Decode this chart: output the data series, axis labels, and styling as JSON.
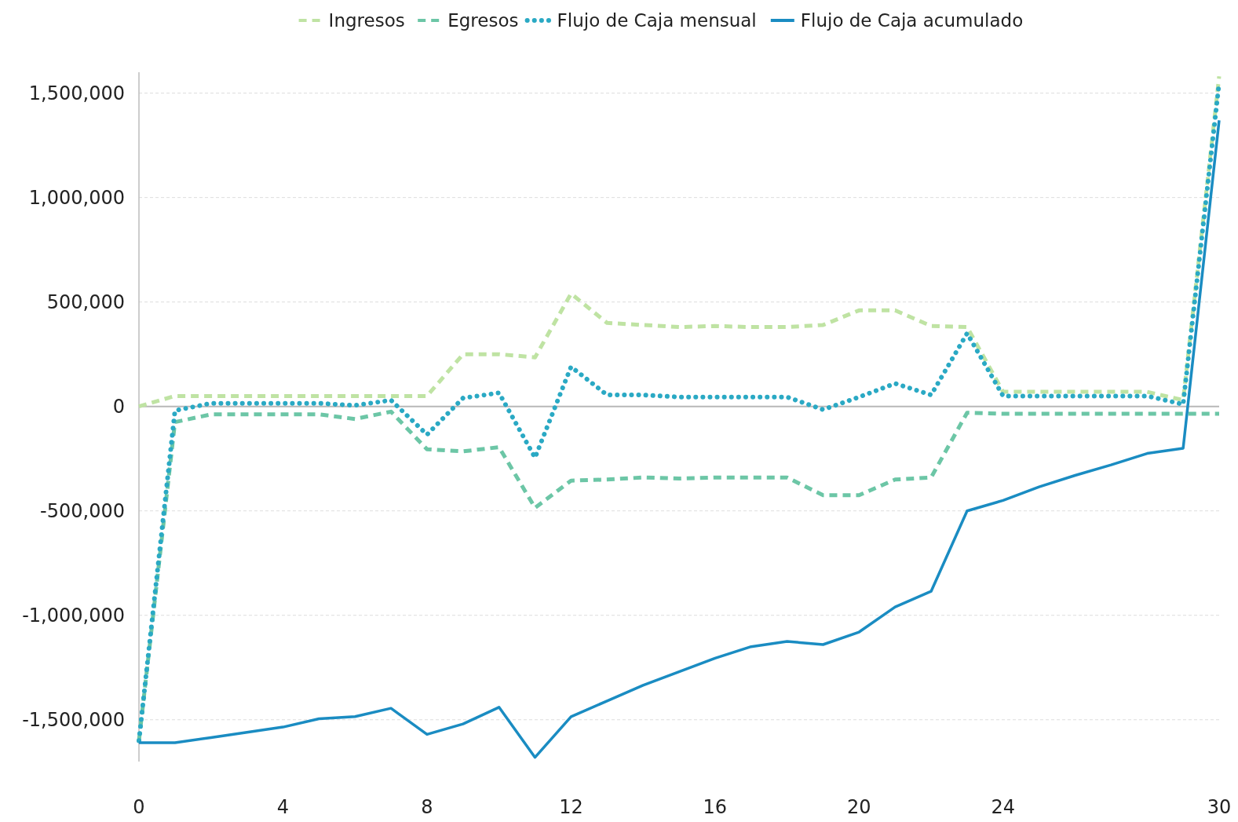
{
  "chart_data": {
    "type": "line",
    "x": [
      0,
      1,
      2,
      3,
      4,
      5,
      6,
      7,
      8,
      9,
      10,
      11,
      12,
      13,
      14,
      15,
      16,
      17,
      18,
      19,
      20,
      21,
      22,
      23,
      24,
      25,
      26,
      27,
      28,
      29,
      30
    ],
    "xlim": [
      0,
      30
    ],
    "xticks": [
      0,
      4,
      8,
      12,
      16,
      20,
      24,
      30
    ],
    "ylim": [
      -1700000,
      1600000
    ],
    "yticks": [
      {
        "value": -1500000,
        "label": "-1,500,000"
      },
      {
        "value": -1000000,
        "label": "-1,000,000"
      },
      {
        "value": -500000,
        "label": "-500,000"
      },
      0,
      {
        "value": 500000,
        "label": "500,000"
      },
      {
        "value": 1000000,
        "label": "1,000,000"
      },
      {
        "value": 1500000,
        "label": "1,500,000"
      }
    ],
    "grid": "y",
    "legend": "top",
    "marker": "none",
    "ref_lines": [
      {
        "axis": "y",
        "value": 0,
        "color": "#b8b8b8",
        "line_style": "solid"
      }
    ],
    "series": [
      {
        "name": "Ingresos",
        "color": "#bfe3a3",
        "line_style": "dashed",
        "values": [
          0,
          50000,
          50000,
          50000,
          50000,
          50000,
          50000,
          50000,
          50000,
          250000,
          250000,
          235000,
          540000,
          400000,
          390000,
          380000,
          385000,
          380000,
          380000,
          390000,
          460000,
          460000,
          385000,
          380000,
          70000,
          70000,
          70000,
          70000,
          70000,
          30000,
          1580000
        ]
      },
      {
        "name": "Egresos",
        "color": "#6cc6a6",
        "line_style": "dashed",
        "values": [
          -1600000,
          -75000,
          -38000,
          -38000,
          -38000,
          -38000,
          -60000,
          -25000,
          -205000,
          -215000,
          -195000,
          -485000,
          -355000,
          -350000,
          -340000,
          -345000,
          -340000,
          -340000,
          -340000,
          -425000,
          -425000,
          -350000,
          -340000,
          -30000,
          -35000,
          -35000,
          -35000,
          -35000,
          -35000,
          -35000,
          -35000
        ]
      },
      {
        "name": "Flujo de Caja mensual",
        "color": "#2aa9c4",
        "line_style": "dotted",
        "values": [
          -1600000,
          -20000,
          15000,
          15000,
          15000,
          15000,
          5000,
          30000,
          -135000,
          40000,
          65000,
          -245000,
          190000,
          55000,
          55000,
          45000,
          45000,
          45000,
          45000,
          -15000,
          45000,
          110000,
          55000,
          350000,
          50000,
          50000,
          50000,
          50000,
          50000,
          10000,
          1550000
        ]
      },
      {
        "name": "Flujo de Caja acumulado",
        "color": "#1a8cc2",
        "line_style": "solid",
        "values": [
          -1610000,
          -1610000,
          -1585000,
          -1560000,
          -1535000,
          -1495000,
          -1485000,
          -1445000,
          -1570000,
          -1520000,
          -1440000,
          -1680000,
          -1485000,
          -1410000,
          -1335000,
          -1270000,
          -1205000,
          -1150000,
          -1125000,
          -1140000,
          -1080000,
          -960000,
          -885000,
          -500000,
          -450000,
          -385000,
          -330000,
          -280000,
          -225000,
          -200000,
          1370000
        ]
      }
    ]
  }
}
